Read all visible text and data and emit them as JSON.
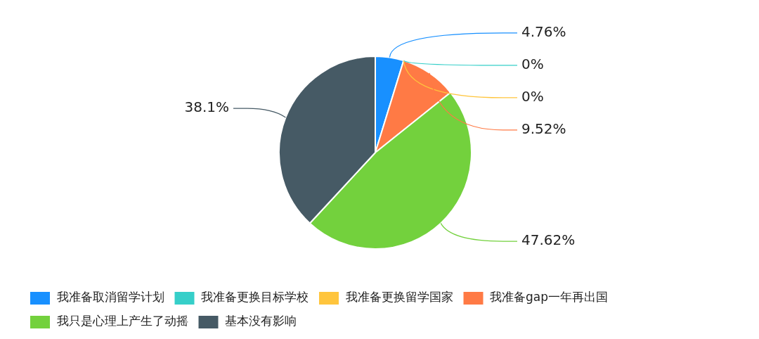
{
  "chart_data": {
    "type": "pie",
    "categories": [
      "我准备取消留学计划",
      "我准备更换目标学校",
      "我准备更换留学国家",
      "我准备gap一年再出国",
      "我只是心理上产生了动摇",
      "基本没有影响"
    ],
    "values": [
      4.76,
      0,
      0,
      9.52,
      47.62,
      38.1
    ],
    "colors": [
      "#1890ff",
      "#36cfc9",
      "#ffc53d",
      "#ff7a45",
      "#73d13d",
      "#465a65"
    ],
    "value_labels": [
      "4.76%",
      "0%",
      "0%",
      "9.52%",
      "47.62%",
      "38.1%"
    ],
    "legend": "bottom"
  }
}
